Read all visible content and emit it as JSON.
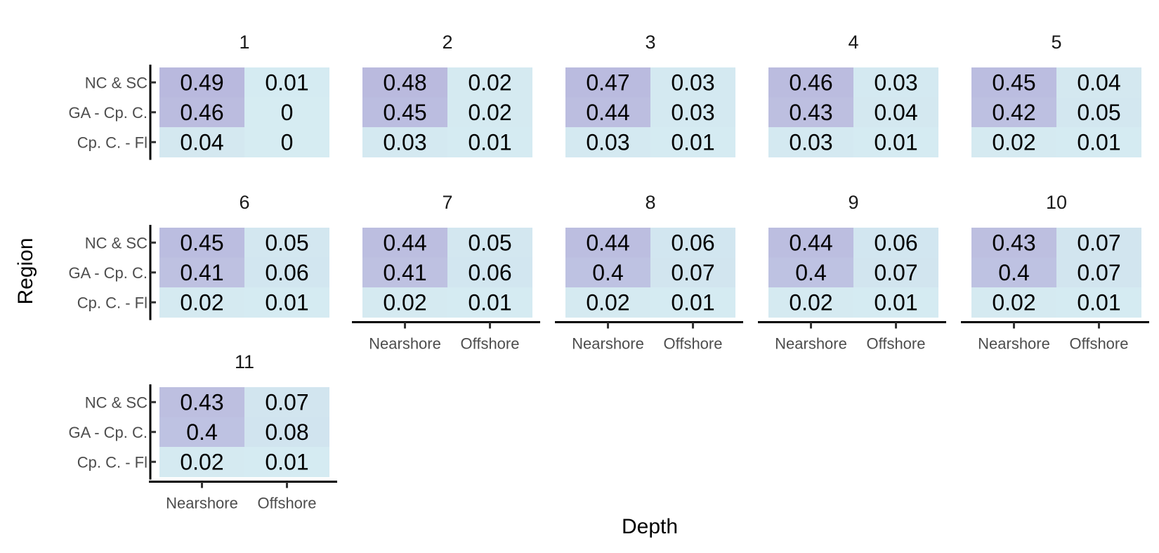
{
  "chart_data": {
    "type": "heatmap",
    "xlabel": "Depth",
    "ylabel": "Region",
    "x_categories": [
      "Nearshore",
      "Offshore"
    ],
    "y_categories": [
      "NC & SC",
      "GA - Cp. C.",
      "Cp. C. - Fl"
    ],
    "fill_scale": {
      "low": "#d6ecf2",
      "high": "#b9b9de",
      "min": 0,
      "max": 0.49
    },
    "grid": false,
    "facets": [
      {
        "label": "1",
        "values": [
          [
            0.49,
            0.01
          ],
          [
            0.46,
            0
          ],
          [
            0.04,
            0
          ]
        ]
      },
      {
        "label": "2",
        "values": [
          [
            0.48,
            0.02
          ],
          [
            0.45,
            0.02
          ],
          [
            0.03,
            0.01
          ]
        ]
      },
      {
        "label": "3",
        "values": [
          [
            0.47,
            0.03
          ],
          [
            0.44,
            0.03
          ],
          [
            0.03,
            0.01
          ]
        ]
      },
      {
        "label": "4",
        "values": [
          [
            0.46,
            0.03
          ],
          [
            0.43,
            0.04
          ],
          [
            0.03,
            0.01
          ]
        ]
      },
      {
        "label": "5",
        "values": [
          [
            0.45,
            0.04
          ],
          [
            0.42,
            0.05
          ],
          [
            0.02,
            0.01
          ]
        ]
      },
      {
        "label": "6",
        "values": [
          [
            0.45,
            0.05
          ],
          [
            0.41,
            0.06
          ],
          [
            0.02,
            0.01
          ]
        ]
      },
      {
        "label": "7",
        "values": [
          [
            0.44,
            0.05
          ],
          [
            0.41,
            0.06
          ],
          [
            0.02,
            0.01
          ]
        ]
      },
      {
        "label": "8",
        "values": [
          [
            0.44,
            0.06
          ],
          [
            0.4,
            0.07
          ],
          [
            0.02,
            0.01
          ]
        ]
      },
      {
        "label": "9",
        "values": [
          [
            0.44,
            0.06
          ],
          [
            0.4,
            0.07
          ],
          [
            0.02,
            0.01
          ]
        ]
      },
      {
        "label": "10",
        "values": [
          [
            0.43,
            0.07
          ],
          [
            0.4,
            0.07
          ],
          [
            0.02,
            0.01
          ]
        ]
      },
      {
        "label": "11",
        "values": [
          [
            0.43,
            0.07
          ],
          [
            0.4,
            0.08
          ],
          [
            0.02,
            0.01
          ]
        ]
      }
    ]
  }
}
